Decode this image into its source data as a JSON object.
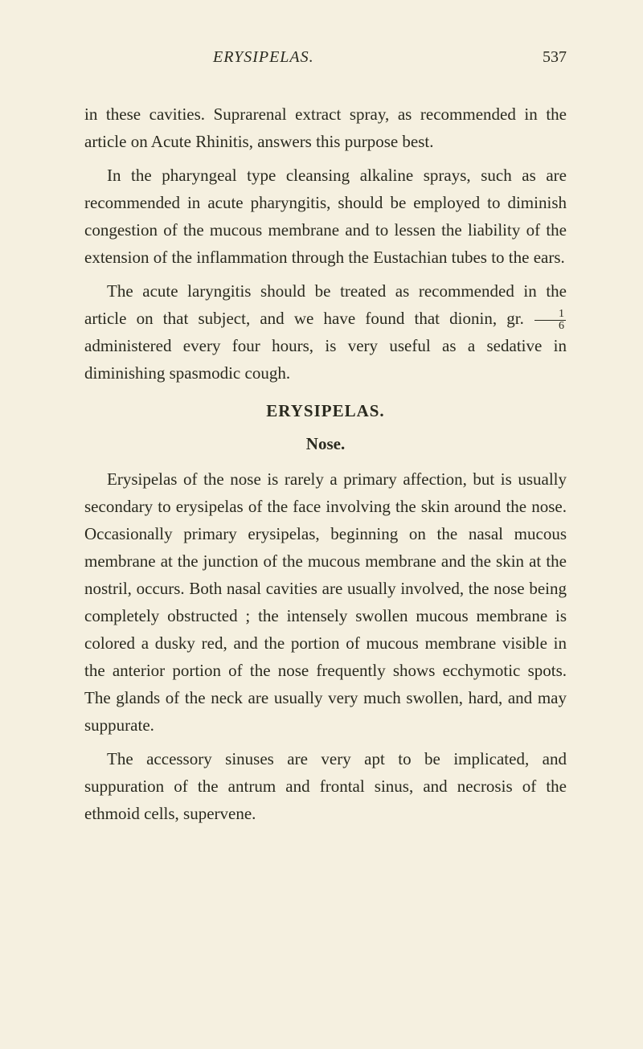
{
  "header": {
    "running_head": "ERYSIPELAS.",
    "page_number": "537"
  },
  "paragraphs": {
    "p1": "in these cavities. Suprarenal extract spray, as recom­mended in the article on Acute Rhinitis, answers this purpose best.",
    "p2": "In the pharyngeal type cleansing alkaline sprays, such as are recommended in acute pharyngitis, should be employed to diminish congestion of the mucous membrane and to lessen the liability of the extension of the inflammation through the Eustachian tubes to the ears.",
    "p3_before": "The acute laryngitis should be treated as recom­mended in the article on that subject, and we have found that dionin, gr. ",
    "p3_after": " administered every four hours, is very useful as a sedative in diminishing spasmodic cough.",
    "fraction_num": "1",
    "fraction_den": "6"
  },
  "section": {
    "title": "ERYSIPELAS.",
    "subtitle": "Nose."
  },
  "body": {
    "p4": "Erysipelas of the nose is rarely a primary affection, but is usually secondary to erysipelas of the face involving the skin around the nose. Occasionally primary erysipelas, beginning on the nasal mucous membrane at the junction of the mucous membrane and the skin at the nostril, occurs. Both nasal cavities are usually involved, the nose being completely ob­structed ; the intensely swollen mucous membrane is colored a dusky red, and the portion of mucous mem­brane visible in the anterior portion of the nose fre­quently shows ecchymotic spots. The glands of the neck are usually very much swollen, hard, and may suppurate.",
    "p5": "The accessory sinuses are very apt to be implicated, and suppuration of the antrum and frontal sinus, and necrosis of the ethmoid cells, supervene."
  },
  "colors": {
    "background": "#f5f0e0",
    "text": "#2a2a1f"
  }
}
